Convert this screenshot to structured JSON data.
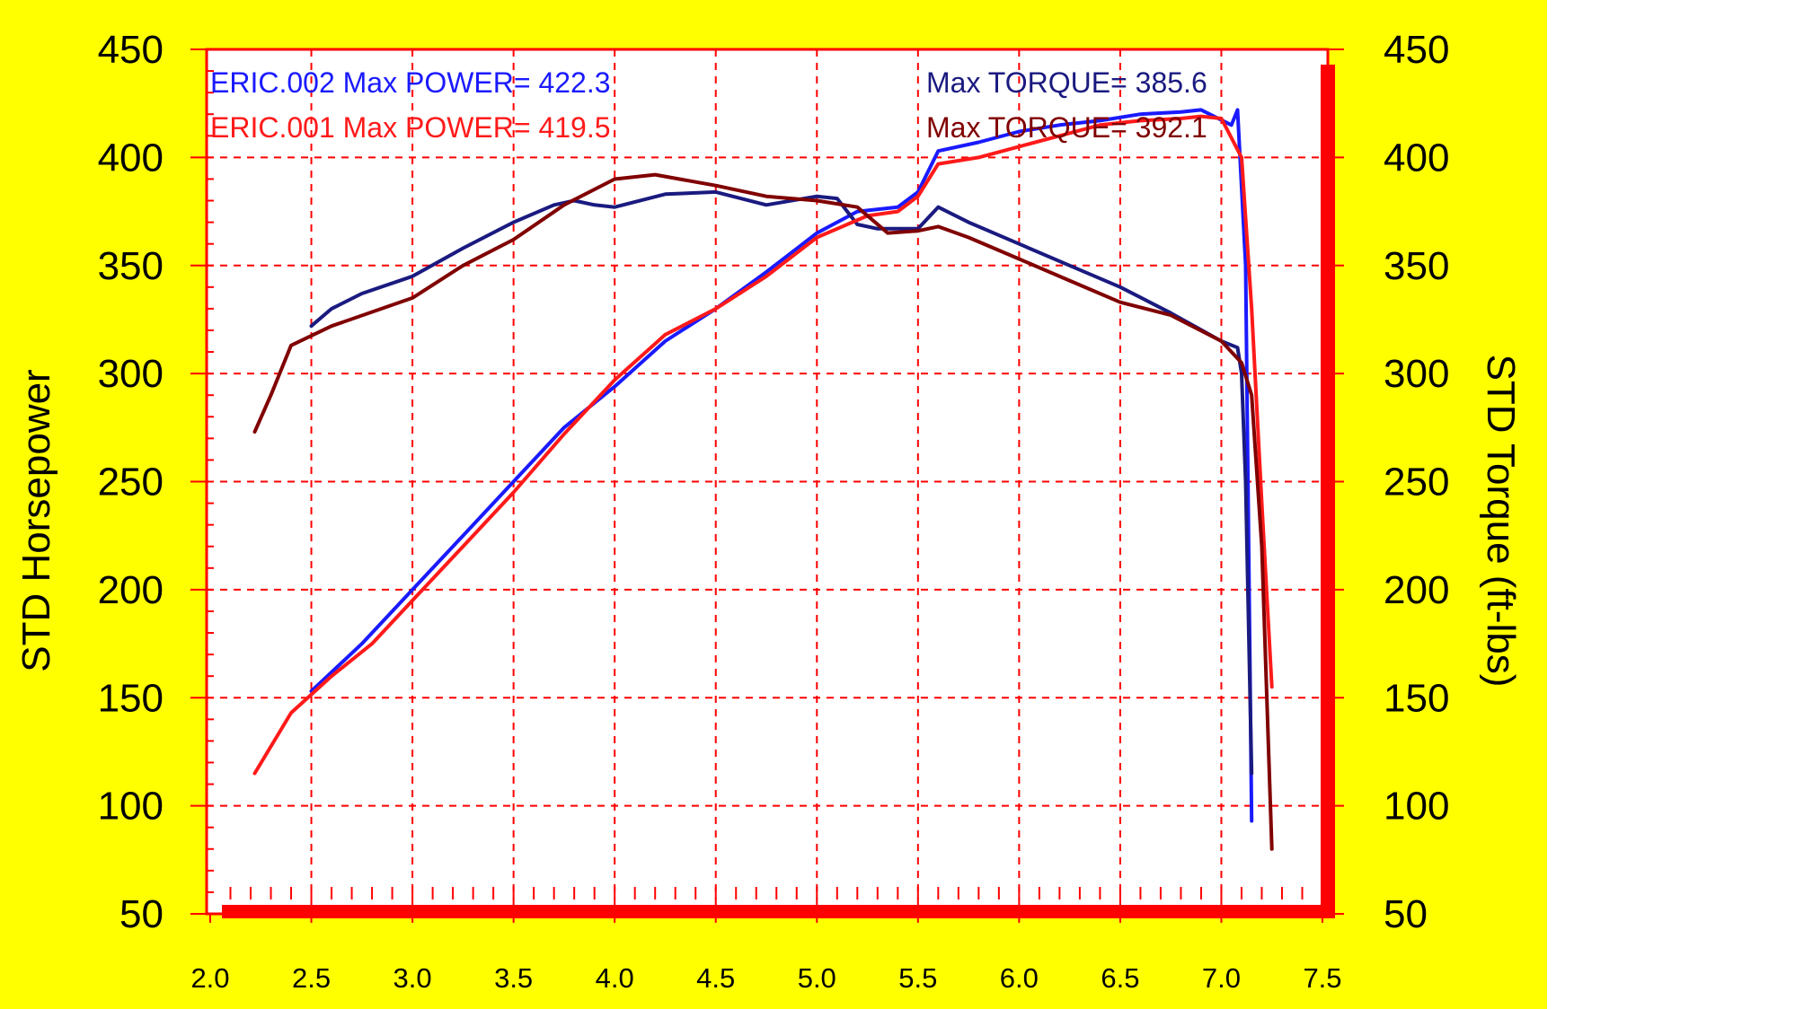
{
  "chart_data": {
    "type": "line",
    "xlabel": "",
    "ylabel": "STD Horsepower",
    "y2label": "STD Torque (ft-lbs)",
    "xlim": [
      2.0,
      7.5
    ],
    "ylim": [
      50,
      450
    ],
    "y2lim": [
      50,
      450
    ],
    "x_ticks": [
      "2.0",
      "2.5",
      "3.0",
      "3.5",
      "4.0",
      "4.5",
      "5.0",
      "5.5",
      "6.0",
      "6.5",
      "7.0",
      "7.5"
    ],
    "y_ticks": [
      "450",
      "400",
      "350",
      "300",
      "250",
      "200",
      "150",
      "100",
      "50"
    ],
    "y2_ticks": [
      "450",
      "400",
      "350",
      "300",
      "250",
      "200",
      "150",
      "100",
      "50"
    ],
    "grid": true,
    "legend_placement": "top",
    "colors": {
      "background": "#ffff00",
      "plot_background": "#ffffff",
      "grid": "#ff0000",
      "frame": "#ff0000",
      "eric002_power": "#1a1aff",
      "eric002_torque": "#1a1a80",
      "eric001_power": "#ff1a1a",
      "eric001_torque": "#800000"
    },
    "annotations": {
      "eric002_power_label": "ERIC.002  Max POWER= 422.3",
      "eric001_power_label": "ERIC.001  Max POWER= 419.5",
      "eric002_torque_label": "Max TORQUE= 385.6",
      "eric001_torque_label": "Max TORQUE= 392.1"
    },
    "series": [
      {
        "run": "ERIC.002",
        "quantity": "power",
        "axis": "left",
        "color": "#1a1aff",
        "x": [
          2.5,
          2.75,
          3.0,
          3.25,
          3.5,
          3.75,
          4.0,
          4.25,
          4.5,
          4.75,
          5.0,
          5.2,
          5.4,
          5.5,
          5.6,
          5.8,
          6.0,
          6.2,
          6.4,
          6.6,
          6.8,
          6.9,
          7.05,
          7.08,
          7.12,
          7.15
        ],
        "values": [
          153,
          175,
          200,
          225,
          250,
          275,
          294,
          315,
          330,
          347,
          365,
          375,
          377,
          384,
          403,
          407,
          412,
          415,
          417,
          420,
          421,
          422,
          415,
          422,
          350,
          93
        ]
      },
      {
        "run": "ERIC.002",
        "quantity": "torque",
        "axis": "right",
        "color": "#1a1a80",
        "x": [
          2.5,
          2.6,
          2.75,
          3.0,
          3.25,
          3.5,
          3.7,
          3.8,
          3.9,
          4.0,
          4.25,
          4.5,
          4.75,
          5.0,
          5.1,
          5.2,
          5.3,
          5.5,
          5.6,
          5.75,
          6.0,
          6.25,
          6.5,
          6.75,
          7.0,
          7.08,
          7.1,
          7.12,
          7.15
        ],
        "values": [
          322,
          330,
          337,
          345,
          358,
          370,
          378,
          380,
          378,
          377,
          383,
          384,
          378,
          382,
          381,
          369,
          367,
          367,
          377,
          370,
          360,
          350,
          340,
          328,
          315,
          312,
          300,
          250,
          115
        ]
      },
      {
        "run": "ERIC.001",
        "quantity": "power",
        "axis": "left",
        "color": "#ff1a1a",
        "x": [
          2.22,
          2.4,
          2.6,
          2.8,
          3.0,
          3.25,
          3.5,
          3.75,
          4.0,
          4.25,
          4.5,
          4.75,
          5.0,
          5.25,
          5.4,
          5.5,
          5.6,
          5.8,
          6.0,
          6.2,
          6.4,
          6.6,
          6.8,
          6.9,
          7.0,
          7.1,
          7.15,
          7.2,
          7.25
        ],
        "values": [
          115,
          143,
          160,
          175,
          195,
          220,
          245,
          272,
          297,
          318,
          330,
          345,
          363,
          373,
          375,
          382,
          397,
          400,
          405,
          410,
          415,
          417,
          418,
          419,
          418,
          400,
          330,
          240,
          155
        ]
      },
      {
        "run": "ERIC.001",
        "quantity": "torque",
        "axis": "right",
        "color": "#800000",
        "x": [
          2.22,
          2.3,
          2.4,
          2.6,
          3.0,
          3.25,
          3.5,
          3.75,
          4.0,
          4.2,
          4.5,
          4.75,
          5.0,
          5.2,
          5.35,
          5.5,
          5.6,
          5.75,
          6.0,
          6.25,
          6.5,
          6.75,
          7.0,
          7.1,
          7.15,
          7.2,
          7.25
        ],
        "values": [
          273,
          290,
          313,
          322,
          335,
          350,
          362,
          378,
          390,
          392,
          387,
          382,
          380,
          377,
          365,
          366,
          368,
          363,
          353,
          343,
          333,
          327,
          315,
          305,
          290,
          220,
          80
        ]
      }
    ]
  }
}
